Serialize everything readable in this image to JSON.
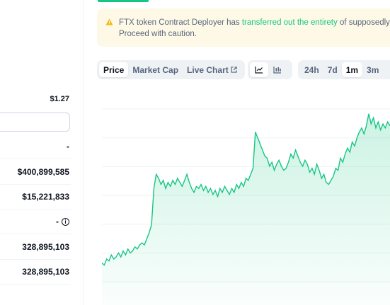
{
  "stats": {
    "price_top": "$1.27",
    "rows": [
      {
        "value": "-"
      },
      {
        "value": "$400,899,585"
      },
      {
        "value": "$15,221,833"
      },
      {
        "value": "-"
      },
      {
        "value": "328,895,103"
      },
      {
        "value": "328,895,103"
      }
    ]
  },
  "warning": {
    "prefix": "FTX token Contract Deployer has ",
    "highlight": "transferred out the entirety",
    "suffix": " of supposedly l",
    "line2": "Proceed with caution.",
    "icon": "warning-icon"
  },
  "toolbar": {
    "data_tabs": [
      {
        "label": "Price",
        "active": true
      },
      {
        "label": "Market Cap",
        "active": false
      },
      {
        "label": "Live Chart",
        "active": false
      }
    ],
    "chart_types": [
      "line-chart-icon",
      "candlestick-icon"
    ],
    "ranges": [
      {
        "label": "24h",
        "active": false
      },
      {
        "label": "7d",
        "active": false
      },
      {
        "label": "1m",
        "active": true
      },
      {
        "label": "3m",
        "active": false
      }
    ]
  },
  "colors": {
    "accent_green": "#16c784",
    "warning_bg": "#fef9e6",
    "warning_icon": "#f0b90b"
  },
  "chart_data": {
    "type": "area",
    "ylim": [
      0,
      100
    ],
    "grid": true,
    "y": [
      18,
      17,
      20,
      19,
      22,
      20,
      21,
      23,
      21,
      24,
      22,
      25,
      23,
      24,
      26,
      25,
      27,
      28,
      27,
      30,
      33,
      37,
      55,
      62,
      60,
      57,
      59,
      55,
      58,
      56,
      59,
      57,
      60,
      58,
      56,
      59,
      62,
      58,
      55,
      53,
      56,
      55,
      57,
      54,
      56,
      53,
      55,
      52,
      54,
      51,
      55,
      53,
      56,
      54,
      52,
      55,
      53,
      57,
      55,
      58,
      56,
      60,
      59,
      62,
      65,
      83,
      80,
      77,
      74,
      71,
      70,
      66,
      68,
      64,
      67,
      69,
      66,
      64,
      65,
      68,
      72,
      70,
      74,
      71,
      68,
      66,
      69,
      67,
      63,
      65,
      62,
      67,
      64,
      60,
      62,
      58,
      57,
      59,
      61,
      65,
      64,
      70,
      68,
      72,
      75,
      73,
      78,
      76,
      80,
      83,
      85,
      82,
      86,
      92,
      87,
      90,
      85,
      88,
      84,
      87,
      85,
      88,
      86
    ]
  }
}
